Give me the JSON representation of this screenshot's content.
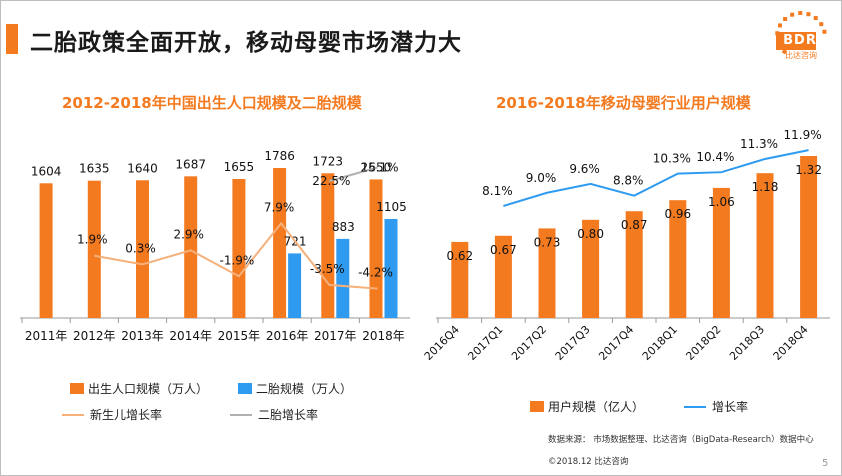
{
  "slide": {
    "title": "二胎政策全面开放，移动母婴市场潜力大",
    "page_number": "5",
    "source": "数据来源： 市场数据整理、比达咨询（BigData-Research）数据中心",
    "copyright": "©2018.12  比达咨询"
  },
  "logo": {
    "text": "BDR",
    "subtext": "比达咨询"
  },
  "colors": {
    "orange": "#f47a20",
    "blue": "#2e9bf0",
    "light_orange": "#f6b07a",
    "gray": "#b0b0b0",
    "line_blue": "#2e9bf0"
  },
  "chart_data": [
    {
      "type": "bar",
      "title": "2012-2018年中国出生人口规模及二胎规模",
      "categories": [
        "2011年",
        "2012年",
        "2013年",
        "2014年",
        "2015年",
        "2016年",
        "2017年",
        "2018年"
      ],
      "series": [
        {
          "name": "出生人口规模（万人）",
          "type": "bar",
          "values": [
            1604,
            1635,
            1640,
            1687,
            1655,
            1786,
            1723,
            1650
          ]
        },
        {
          "name": "二胎规模（万人）",
          "type": "bar",
          "values": [
            null,
            null,
            null,
            null,
            null,
            721,
            883,
            1105
          ]
        },
        {
          "name": "新生儿增长率",
          "type": "line",
          "values": [
            null,
            1.9,
            0.3,
            2.9,
            -1.9,
            7.9,
            -3.5,
            -4.2
          ],
          "labels": [
            "",
            "1.9%",
            "0.3%",
            "2.9%",
            "-1.9%",
            "7.9%",
            "-3.5%",
            "-4.2%"
          ]
        },
        {
          "name": "二胎增长率",
          "type": "line",
          "values": [
            null,
            null,
            null,
            null,
            null,
            null,
            22.5,
            25.1
          ],
          "labels": [
            "",
            "",
            "",
            "",
            "",
            "",
            "22.5%",
            "25.1%"
          ]
        }
      ],
      "legend": [
        "出生人口规模（万人）",
        "二胎规模（万人）",
        "新生儿增长率",
        "二胎增长率"
      ],
      "legend_position": "bottom"
    },
    {
      "type": "bar",
      "title": "2016-2018年移动母婴行业用户规模",
      "categories": [
        "2016Q4",
        "2017Q1",
        "2017Q2",
        "2017Q3",
        "2017Q4",
        "2018Q1",
        "2018Q2",
        "2018Q3",
        "2018Q4"
      ],
      "series": [
        {
          "name": "用户规模（亿人）",
          "type": "bar",
          "values": [
            0.62,
            0.67,
            0.73,
            0.8,
            0.87,
            0.96,
            1.06,
            1.18,
            1.32
          ]
        },
        {
          "name": "增长率",
          "type": "line",
          "values": [
            null,
            8.1,
            9.0,
            9.6,
            8.8,
            10.3,
            10.4,
            11.3,
            11.9
          ],
          "labels": [
            "",
            "8.1%",
            "9.0%",
            "9.6%",
            "8.8%",
            "10.3%",
            "10.4%",
            "11.3%",
            "11.9%"
          ]
        }
      ],
      "legend": [
        "用户规模（亿人）",
        "增长率"
      ],
      "legend_position": "bottom"
    }
  ]
}
